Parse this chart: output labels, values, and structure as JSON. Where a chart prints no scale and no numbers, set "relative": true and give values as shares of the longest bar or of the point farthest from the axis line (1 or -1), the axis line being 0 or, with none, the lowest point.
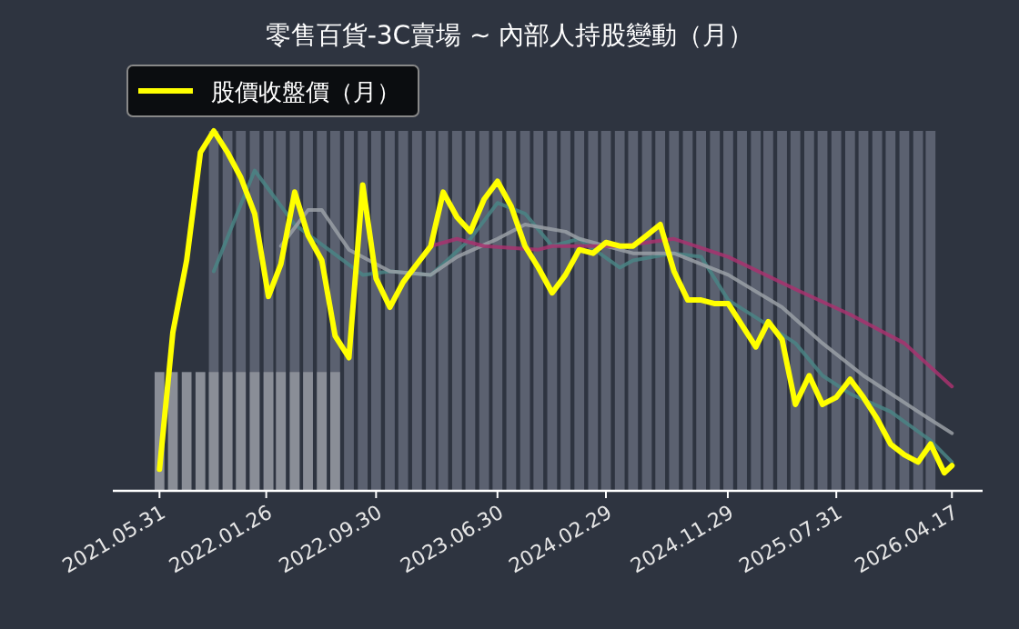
{
  "chart_data": {
    "type": "line",
    "title": "零售百貨-3C賣場 ~ 內部人持股變動（月）",
    "relative": true,
    "legend": "top left",
    "grid": false,
    "xlim": [
      "2021-02-15",
      "2026-06-25"
    ],
    "xticks": [
      {
        "value": "2021-05-31",
        "label": "2021.05.31"
      },
      {
        "value": "2022-01-26",
        "label": "2022.01.26"
      },
      {
        "value": "2022-09-30",
        "label": "2022.09.30"
      },
      {
        "value": "2023-06-30",
        "label": "2023.06.30"
      },
      {
        "value": "2024-02-29",
        "label": "2024.02.29"
      },
      {
        "value": "2024-11-29",
        "label": "2024.11.29"
      },
      {
        "value": "2025-07-31",
        "label": "2025.07.31"
      },
      {
        "value": "2026-04-17",
        "label": "2026.04.17"
      }
    ],
    "series": [
      {
        "type": "bar",
        "color": "#5b6170",
        "x": [
          "2021-09-30",
          "2021-10-31",
          "2021-11-30",
          "2021-12-31",
          "2022-01-31",
          "2022-02-28",
          "2022-03-31",
          "2022-04-30",
          "2022-05-31",
          "2022-06-30",
          "2022-07-31",
          "2022-08-31",
          "2022-09-30",
          "2022-10-31",
          "2022-11-30",
          "2022-12-31",
          "2023-01-31",
          "2023-02-28",
          "2023-03-31",
          "2023-04-30",
          "2023-05-31",
          "2023-06-30",
          "2023-07-31",
          "2023-08-31",
          "2023-09-30",
          "2023-10-31",
          "2023-11-30",
          "2023-12-31",
          "2024-01-31",
          "2024-02-29",
          "2024-03-31",
          "2024-04-30",
          "2024-05-31",
          "2024-06-30",
          "2024-07-31",
          "2024-08-31",
          "2024-09-30",
          "2024-10-31",
          "2024-11-30",
          "2024-12-31",
          "2025-01-31",
          "2025-02-28",
          "2025-03-31",
          "2025-04-30",
          "2025-05-31",
          "2025-06-30",
          "2025-07-31",
          "2025-08-31",
          "2025-09-30",
          "2025-10-31",
          "2025-11-30",
          "2025-12-31",
          "2026-01-31",
          "2026-02-28"
        ],
        "values": [
          1,
          1,
          1,
          1,
          1,
          1,
          1,
          1,
          1,
          1,
          1,
          1,
          1,
          1,
          1,
          1,
          1,
          1,
          1,
          1,
          1,
          1,
          1,
          1,
          1,
          1,
          1,
          1,
          1,
          1,
          1,
          1,
          1,
          1,
          1,
          1,
          1,
          1,
          1,
          1,
          1,
          1,
          1,
          1,
          1,
          1,
          1,
          1,
          1,
          1,
          1,
          1,
          1,
          1
        ]
      },
      {
        "type": "bar",
        "color": "#8a8e97",
        "x": [
          "2021-05-31",
          "2021-06-30",
          "2021-07-31",
          "2021-08-31",
          "2021-09-30",
          "2021-10-31",
          "2021-11-30",
          "2021-12-31",
          "2022-01-31",
          "2022-02-28",
          "2022-03-31",
          "2022-04-30",
          "2022-05-31",
          "2022-06-30"
        ],
        "values": [
          0.33,
          0.33,
          0.33,
          0.33,
          0.33,
          0.33,
          0.33,
          0.33,
          0.33,
          0.33,
          0.33,
          0.33,
          0.33,
          0.33
        ]
      },
      {
        "color": "#4a8585",
        "x": [
          "2021-09-30",
          "2021-12-31",
          "2022-03-31",
          "2022-08-31",
          "2022-10-31",
          "2023-01-31",
          "2023-02-28",
          "2023-04-30",
          "2023-06-30",
          "2023-08-31",
          "2023-10-31",
          "2023-12-31",
          "2024-03-31",
          "2024-04-30",
          "2024-07-31",
          "2024-09-30",
          "2024-11-30",
          "2025-02-28",
          "2025-04-30",
          "2025-06-30",
          "2025-08-31",
          "2025-11-30",
          "2026-02-28",
          "2026-04-17"
        ],
        "values": [
          0.61,
          0.89,
          0.74,
          0.6,
          0.61,
          0.6,
          0.63,
          0.7,
          0.8,
          0.77,
          0.68,
          0.7,
          0.62,
          0.64,
          0.66,
          0.65,
          0.53,
          0.46,
          0.41,
          0.32,
          0.27,
          0.22,
          0.14,
          0.08
        ]
      },
      {
        "color": "#9aa0a6",
        "x": [
          "2022-02-28",
          "2022-04-30",
          "2022-05-31",
          "2022-07-31",
          "2022-10-31",
          "2023-01-31",
          "2023-03-31",
          "2023-06-30",
          "2023-08-31",
          "2023-11-30",
          "2023-12-31",
          "2024-04-30",
          "2024-07-31",
          "2024-11-30",
          "2025-03-31",
          "2025-06-30",
          "2025-09-30",
          "2026-01-31",
          "2026-04-17"
        ],
        "values": [
          0.68,
          0.78,
          0.78,
          0.67,
          0.61,
          0.6,
          0.65,
          0.7,
          0.74,
          0.72,
          0.7,
          0.66,
          0.66,
          0.6,
          0.51,
          0.41,
          0.32,
          0.22,
          0.16
        ]
      },
      {
        "color": "#a8336e",
        "x": [
          "2023-01-31",
          "2023-03-31",
          "2023-05-31",
          "2023-09-30",
          "2023-10-31",
          "2024-03-31",
          "2024-07-31",
          "2024-11-30",
          "2025-04-30",
          "2025-08-31",
          "2025-12-31",
          "2026-04-17"
        ],
        "values": [
          0.68,
          0.7,
          0.68,
          0.67,
          0.68,
          0.68,
          0.7,
          0.65,
          0.56,
          0.49,
          0.41,
          0.29
        ]
      },
      {
        "name": "股價收盤價（月）",
        "color": "#ffff00",
        "x": [
          "2021-05-31",
          "2021-06-30",
          "2021-07-31",
          "2021-08-31",
          "2021-09-30",
          "2021-10-31",
          "2021-11-30",
          "2021-12-31",
          "2022-01-31",
          "2022-02-28",
          "2022-03-31",
          "2022-04-30",
          "2022-05-31",
          "2022-06-30",
          "2022-07-31",
          "2022-08-31",
          "2022-09-30",
          "2022-10-31",
          "2022-11-30",
          "2022-12-31",
          "2023-01-31",
          "2023-02-28",
          "2023-03-31",
          "2023-04-30",
          "2023-05-31",
          "2023-06-30",
          "2023-07-31",
          "2023-08-31",
          "2023-09-30",
          "2023-10-31",
          "2023-11-30",
          "2023-12-31",
          "2024-01-31",
          "2024-02-29",
          "2024-03-31",
          "2024-04-30",
          "2024-05-31",
          "2024-06-30",
          "2024-07-31",
          "2024-08-31",
          "2024-09-30",
          "2024-10-31",
          "2024-11-30",
          "2024-12-31",
          "2025-01-31",
          "2025-02-28",
          "2025-03-31",
          "2025-04-30",
          "2025-05-31",
          "2025-06-30",
          "2025-07-31",
          "2025-08-31",
          "2025-09-30",
          "2025-10-31",
          "2025-11-30",
          "2025-12-31",
          "2026-01-31",
          "2026-02-28",
          "2026-03-31",
          "2026-04-17"
        ],
        "values": [
          0.06,
          0.44,
          0.64,
          0.94,
          1.0,
          0.94,
          0.87,
          0.77,
          0.54,
          0.63,
          0.83,
          0.71,
          0.64,
          0.43,
          0.37,
          0.85,
          0.59,
          0.51,
          0.58,
          0.63,
          0.68,
          0.83,
          0.76,
          0.72,
          0.81,
          0.86,
          0.79,
          0.68,
          0.62,
          0.55,
          0.6,
          0.67,
          0.66,
          0.69,
          0.68,
          0.68,
          0.71,
          0.74,
          0.61,
          0.53,
          0.53,
          0.52,
          0.52,
          0.46,
          0.4,
          0.47,
          0.42,
          0.24,
          0.32,
          0.24,
          0.26,
          0.31,
          0.26,
          0.2,
          0.13,
          0.1,
          0.08,
          0.13,
          0.05,
          0.07
        ]
      }
    ]
  }
}
